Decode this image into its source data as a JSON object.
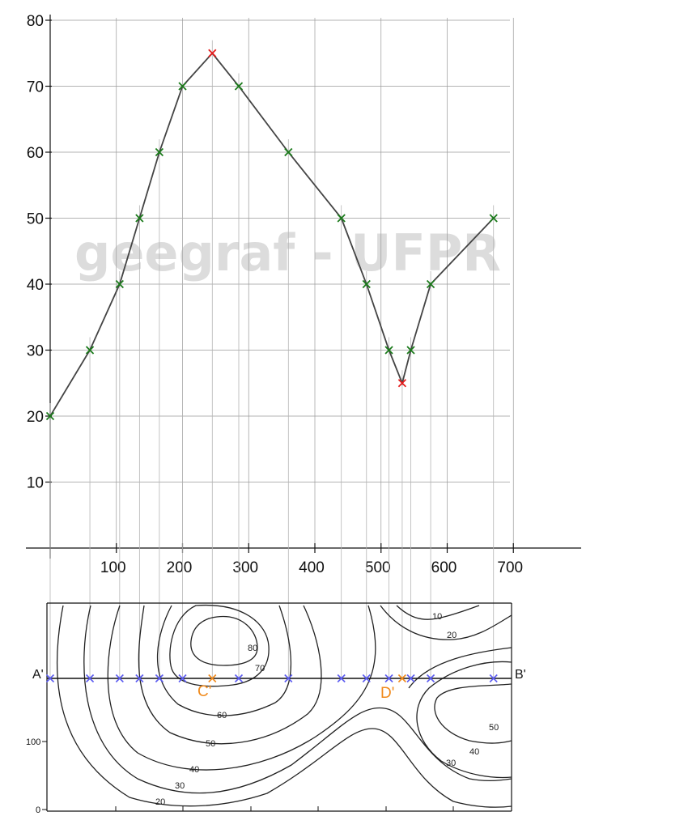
{
  "watermark": "geegraf - UFPR",
  "chart_data": {
    "type": "line",
    "x": [
      0,
      60,
      105,
      135,
      165,
      200,
      245,
      285,
      360,
      440,
      478,
      512,
      532,
      545,
      575,
      670
    ],
    "y": [
      20,
      30,
      40,
      50,
      60,
      70,
      75,
      70,
      60,
      50,
      40,
      30,
      25,
      30,
      40,
      50
    ],
    "highlight_points": [
      {
        "x": 245,
        "y": 75
      },
      {
        "x": 532,
        "y": 25
      }
    ],
    "x_ticks": [
      "100",
      "200",
      "300",
      "400",
      "500",
      "600",
      "700"
    ],
    "y_ticks": [
      "10",
      "20",
      "30",
      "40",
      "50",
      "60",
      "70",
      "80"
    ],
    "xlim": [
      0,
      700
    ],
    "ylim": [
      0,
      80
    ],
    "grid": true,
    "colors": {
      "line": "#444444",
      "point": "#1a7a1a",
      "highlight": "#e51c1c"
    }
  },
  "map": {
    "section_start": "A'",
    "section_end": "B'",
    "point_c": "C'",
    "point_d": "D'",
    "axis_100": "100",
    "axis_0": "0",
    "contour_labels": [
      "80",
      "70",
      "60",
      "50",
      "40",
      "30",
      "20",
      "10",
      "20",
      "50",
      "40",
      "30"
    ],
    "colors": {
      "section_marker": "#5b5bf0",
      "special_marker": "#f08a1c"
    }
  }
}
